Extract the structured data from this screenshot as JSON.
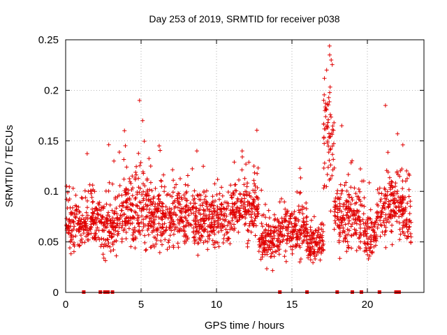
{
  "chart_data": {
    "type": "scatter",
    "title": "Day 253 of 2019, SRMTID for receiver p038",
    "xlabel": "GPS time / hours",
    "ylabel": "SRMTID / TECUs",
    "xlim": [
      0,
      23.75
    ],
    "ylim": [
      0,
      0.25
    ],
    "x_ticks": [
      0,
      5,
      10,
      15,
      20
    ],
    "x_tick_labels": [
      "0",
      "5",
      "10",
      "15",
      "20"
    ],
    "y_ticks": [
      0,
      0.05,
      0.1,
      0.15,
      0.2,
      0.25
    ],
    "y_tick_labels": [
      "0",
      "0.05",
      "0.1",
      "0.15",
      "0.2",
      "0.25"
    ],
    "grid": true,
    "marker": "+",
    "series_color": "#e00000",
    "zero_value_times": [
      1.2,
      2.3,
      2.6,
      2.8,
      3.1,
      14.2,
      16.0,
      18.0,
      19.0,
      19.6,
      20.8,
      21.9,
      22.1
    ],
    "notable_points": [
      {
        "x": 1.5,
        "y": 0.1
      },
      {
        "x": 3.2,
        "y": 0.13
      },
      {
        "x": 3.9,
        "y": 0.16
      },
      {
        "x": 4.9,
        "y": 0.19
      },
      {
        "x": 5.1,
        "y": 0.17
      },
      {
        "x": 6.2,
        "y": 0.145
      },
      {
        "x": 8.7,
        "y": 0.14
      },
      {
        "x": 11.7,
        "y": 0.14
      },
      {
        "x": 17.3,
        "y": 0.22
      },
      {
        "x": 17.5,
        "y": 0.235
      },
      {
        "x": 17.6,
        "y": 0.23
      },
      {
        "x": 18.3,
        "y": 0.165
      },
      {
        "x": 21.2,
        "y": 0.185
      },
      {
        "x": 22.0,
        "y": 0.157
      }
    ],
    "segments": [
      {
        "t0": 0.0,
        "t1": 1.3,
        "base": 0.068,
        "spread": 0.022
      },
      {
        "t0": 1.3,
        "t1": 2.3,
        "base": 0.072,
        "spread": 0.025
      },
      {
        "t0": 2.3,
        "t1": 3.4,
        "base": 0.068,
        "spread": 0.027
      },
      {
        "t0": 3.4,
        "t1": 4.6,
        "base": 0.078,
        "spread": 0.03
      },
      {
        "t0": 4.6,
        "t1": 5.6,
        "base": 0.08,
        "spread": 0.032
      },
      {
        "t0": 5.6,
        "t1": 8.5,
        "base": 0.074,
        "spread": 0.025
      },
      {
        "t0": 8.5,
        "t1": 11.0,
        "base": 0.072,
        "spread": 0.025
      },
      {
        "t0": 11.0,
        "t1": 12.8,
        "base": 0.085,
        "spread": 0.028
      },
      {
        "t0": 12.8,
        "t1": 14.3,
        "base": 0.055,
        "spread": 0.02
      },
      {
        "t0": 14.3,
        "t1": 16.0,
        "base": 0.062,
        "spread": 0.022
      },
      {
        "t0": 16.0,
        "t1": 17.1,
        "base": 0.048,
        "spread": 0.015
      },
      {
        "t0": 17.1,
        "t1": 17.8,
        "base": 0.15,
        "spread": 0.05
      },
      {
        "t0": 17.8,
        "t1": 19.8,
        "base": 0.075,
        "spread": 0.028
      },
      {
        "t0": 19.8,
        "t1": 20.6,
        "base": 0.055,
        "spread": 0.02
      },
      {
        "t0": 20.6,
        "t1": 22.6,
        "base": 0.085,
        "spread": 0.03
      },
      {
        "t0": 22.6,
        "t1": 22.9,
        "base": 0.068,
        "spread": 0.022
      }
    ]
  }
}
